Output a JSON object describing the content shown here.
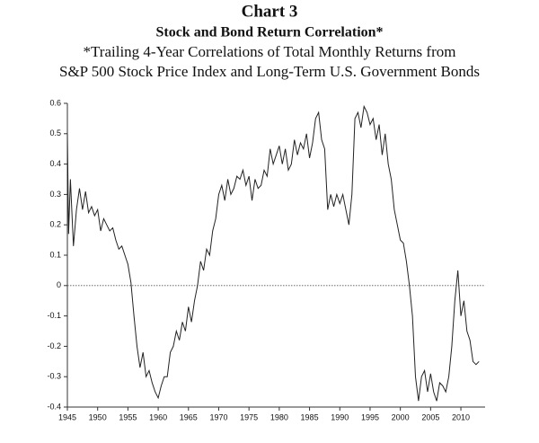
{
  "chart_data": {
    "type": "line",
    "title": "Chart 3",
    "subtitle": "Stock and Bond Return Correlation*",
    "note_lines": [
      "*Trailing 4-Year Correlations of Total Monthly Returns from",
      "S&P 500 Stock Price Index and Long-Term U.S. Government Bonds"
    ],
    "x": [
      1945,
      1945.2,
      1945.5,
      1946,
      1946.5,
      1947,
      1947.5,
      1948,
      1948.5,
      1949,
      1949.5,
      1950,
      1950.5,
      1951,
      1951.5,
      1952,
      1952.5,
      1953,
      1953.5,
      1954,
      1954.5,
      1955,
      1955.5,
      1956,
      1956.5,
      1957,
      1957.5,
      1958,
      1958.5,
      1959,
      1959.5,
      1960,
      1960.5,
      1961,
      1961.5,
      1962,
      1962.5,
      1963,
      1963.5,
      1964,
      1964.5,
      1965,
      1965.5,
      1966,
      1966.5,
      1967,
      1967.5,
      1968,
      1968.5,
      1969,
      1969.5,
      1970,
      1970.5,
      1971,
      1971.5,
      1972,
      1972.5,
      1973,
      1973.5,
      1974,
      1974.5,
      1975,
      1975.5,
      1976,
      1976.5,
      1977,
      1977.5,
      1978,
      1978.5,
      1979,
      1979.5,
      1980,
      1980.5,
      1981,
      1981.5,
      1982,
      1982.5,
      1983,
      1983.5,
      1984,
      1984.5,
      1985,
      1985.5,
      1986,
      1986.5,
      1987,
      1987.5,
      1988,
      1988.5,
      1989,
      1989.5,
      1990,
      1990.5,
      1991,
      1991.5,
      1992,
      1992.5,
      1993,
      1993.5,
      1994,
      1994.5,
      1995,
      1995.5,
      1996,
      1996.5,
      1997,
      1997.5,
      1998,
      1998.5,
      1999,
      1999.5,
      2000,
      2000.5,
      2001,
      2001.5,
      2002,
      2002.5,
      2003,
      2003.5,
      2004,
      2004.5,
      2005,
      2005.5,
      2006,
      2006.5,
      2007,
      2007.5,
      2008,
      2008.5,
      2009,
      2009.5,
      2010,
      2010.5,
      2011,
      2011.5,
      2012,
      2012.5,
      2013
    ],
    "series": [
      {
        "color": "#222222",
        "values": [
          0.5,
          0.17,
          0.35,
          0.13,
          0.25,
          0.32,
          0.25,
          0.31,
          0.24,
          0.26,
          0.23,
          0.25,
          0.18,
          0.22,
          0.2,
          0.18,
          0.19,
          0.15,
          0.12,
          0.13,
          0.1,
          0.07,
          0.01,
          -0.1,
          -0.2,
          -0.27,
          -0.22,
          -0.3,
          -0.28,
          -0.32,
          -0.35,
          -0.37,
          -0.33,
          -0.3,
          -0.3,
          -0.22,
          -0.2,
          -0.15,
          -0.18,
          -0.12,
          -0.15,
          -0.07,
          -0.12,
          -0.05,
          0.0,
          0.08,
          0.05,
          0.12,
          0.1,
          0.18,
          0.22,
          0.3,
          0.33,
          0.28,
          0.35,
          0.3,
          0.32,
          0.36,
          0.35,
          0.38,
          0.33,
          0.36,
          0.28,
          0.35,
          0.32,
          0.33,
          0.38,
          0.36,
          0.45,
          0.4,
          0.43,
          0.46,
          0.4,
          0.45,
          0.38,
          0.4,
          0.48,
          0.43,
          0.47,
          0.45,
          0.5,
          0.42,
          0.47,
          0.55,
          0.57,
          0.48,
          0.45,
          0.25,
          0.3,
          0.26,
          0.3,
          0.27,
          0.3,
          0.25,
          0.2,
          0.3,
          0.55,
          0.57,
          0.52,
          0.59,
          0.57,
          0.53,
          0.55,
          0.48,
          0.53,
          0.43,
          0.5,
          0.4,
          0.35,
          0.25,
          0.2,
          0.15,
          0.14,
          0.08,
          0.0,
          -0.1,
          -0.3,
          -0.38,
          -0.3,
          -0.28,
          -0.35,
          -0.29,
          -0.35,
          -0.38,
          -0.32,
          -0.33,
          -0.35,
          -0.3,
          -0.2,
          -0.05,
          0.05,
          -0.1,
          -0.05,
          -0.15,
          -0.18,
          -0.25,
          -0.26,
          -0.25
        ]
      }
    ],
    "xlim": [
      1945,
      2014
    ],
    "xticks": [
      1945,
      1950,
      1955,
      1960,
      1965,
      1970,
      1975,
      1980,
      1985,
      1990,
      1995,
      2000,
      2005,
      2010
    ],
    "ylim": [
      -0.4,
      0.6
    ],
    "yticks": [
      -0.4,
      -0.3,
      -0.2,
      -0.1,
      0,
      0.1,
      0.2,
      0.3,
      0.4,
      0.5,
      0.6
    ],
    "zero_line": true
  }
}
